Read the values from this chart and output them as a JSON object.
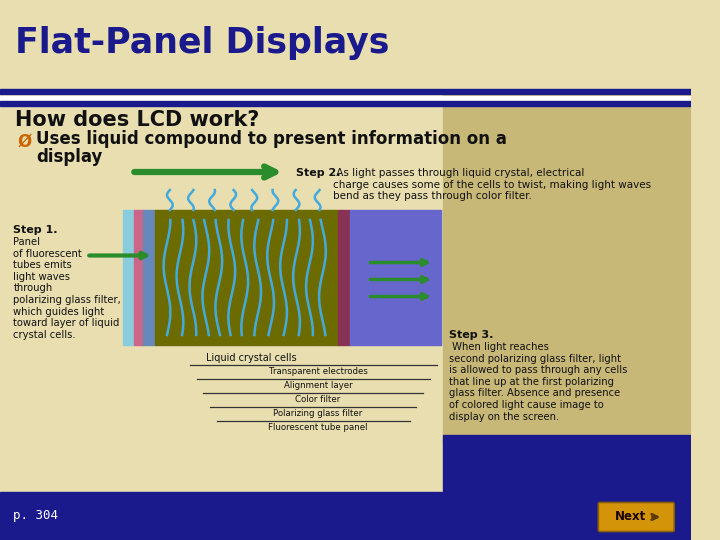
{
  "title": "Flat-Panel Displays",
  "title_color": "#1a1a8c",
  "bg_color_main": "#e8deb0",
  "bg_color_right_panel": "#c8b878",
  "bg_color_bottom": "#1a1a8c",
  "main_heading": "How does LCD work?",
  "bullet_text_line1": "Uses liquid compound to present information on a",
  "bullet_text_line2": "display",
  "step1_bold": "Step 1.",
  "step1_body": "Panel\nof fluorescent\ntubes emits\nlight waves\nthrough\npolarizing glass filter,\nwhich guides light\ntoward layer of liquid\ncrystal cells.",
  "step2_bold": "Step 2.",
  "step2_body": " As light passes through liquid crystal, electrical\ncharge causes some of the cells to twist, making light waves\nbend as they pass through color filter.",
  "step3_bold": "Step 3.",
  "step3_body": " When light reaches\nsecond polarizing glass filter, light\nis allowed to pass through any cells\nthat line up at the first polarizing\nglass filter. Absence and presence\nof colored light cause image to\ndisplay on the screen.",
  "liquid_crystal_label": "Liquid crystal cells",
  "diagram_labels": [
    "Transparent electrodes",
    "Alignment layer",
    "Color filter",
    "Polarizing glass filter",
    "Fluorescent tube panel"
  ],
  "page_ref": "p. 304",
  "next_btn_label": "Next",
  "next_btn_color": "#d4940a",
  "next_btn_text_color": "#1a0000",
  "arrow_color": "#2a8c2a",
  "lcd_olive_color": "#6b6b00",
  "lcd_blue_color": "#6666cc",
  "lcd_crystal_color": "#44aadd",
  "lcd_left_panel1_color": "#88ccdd",
  "lcd_left_panel2_color": "#cc6688",
  "lcd_left_panel3_color": "#6688bb",
  "lcd_strip_color": "#883355",
  "header_line1_color": "#1a1a8c",
  "header_line2_color": "#ffffff"
}
